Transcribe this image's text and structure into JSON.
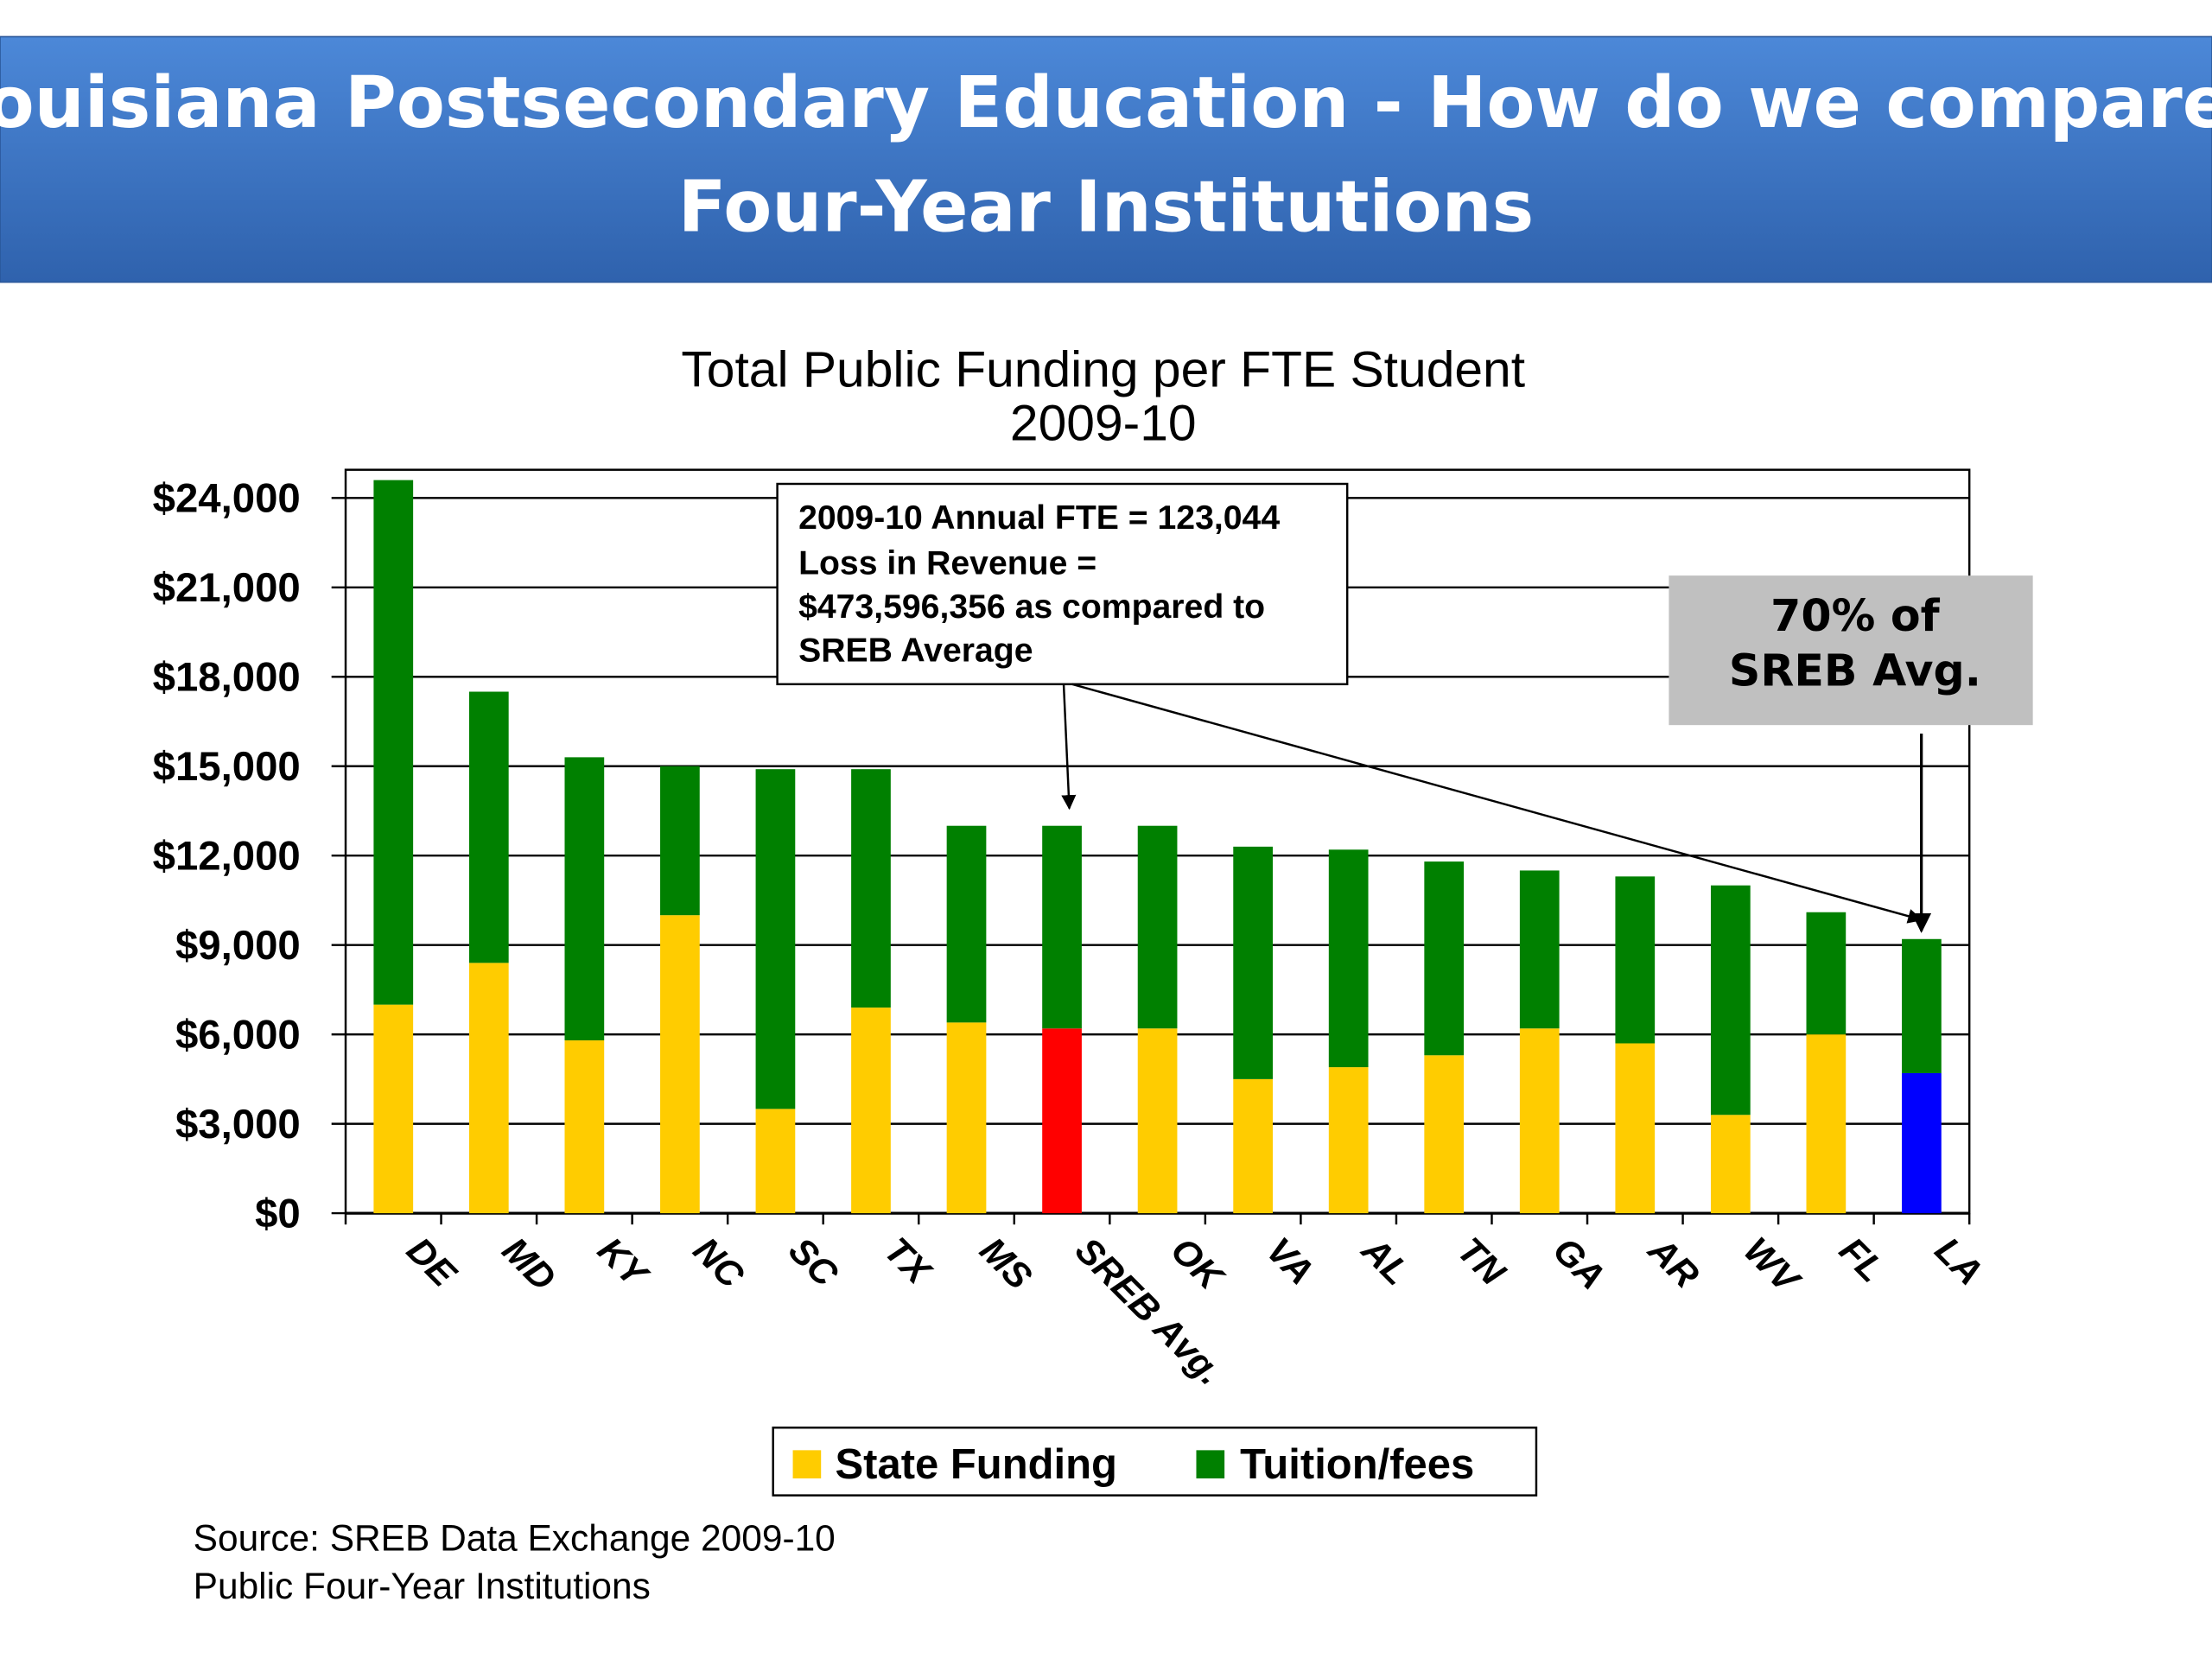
{
  "header": {
    "title_line1": "Louisiana Postsecondary Education  - How do we compare?",
    "title_line2": "Four-Year Institutions",
    "background": "#3b73c4"
  },
  "chart_data": {
    "type": "bar",
    "stacked": true,
    "title": "Total Public Funding per FTE Student",
    "subtitle": "2009-10",
    "xlabel": "",
    "ylabel": "",
    "ylim": [
      0,
      24000
    ],
    "yticks": [
      0,
      3000,
      6000,
      9000,
      12000,
      15000,
      18000,
      21000,
      24000
    ],
    "ytick_labels": [
      "$0",
      "$3,000",
      "$6,000",
      "$9,000",
      "$12,000",
      "$15,000",
      "$18,000",
      "$21,000",
      "$24,000"
    ],
    "grid": true,
    "categories": [
      "DE",
      "MD",
      "KY",
      "NC",
      "SC",
      "TX",
      "MS",
      "SREB Avg.",
      "OK",
      "VA",
      "AL",
      "TN",
      "GA",
      "AR",
      "WV",
      "FL",
      "LA"
    ],
    "series": [
      {
        "name": "State Funding",
        "color": "#FFCC00",
        "values": [
          7000,
          8400,
          5800,
          10000,
          3500,
          6900,
          6400,
          6200,
          6200,
          4500,
          4900,
          5300,
          6200,
          5700,
          3300,
          6000,
          4700
        ]
      },
      {
        "name": "Tuition/fees",
        "color": "#008000",
        "values": [
          17600,
          9100,
          9500,
          5000,
          11400,
          8000,
          6600,
          6800,
          6800,
          7800,
          7300,
          6500,
          5300,
          5600,
          7700,
          4100,
          4500
        ]
      }
    ],
    "highlight_colors": {
      "SREB Avg.": "#FF0000",
      "LA": "#0000FF"
    },
    "legend": [
      "State Funding",
      "Tuition/fees"
    ],
    "legend_position": "bottom",
    "annotations": {
      "fte_box": [
        "2009-10 Annual FTE = 123,044",
        "Loss in Revenue =",
        "$473,596,356 as compared to",
        "SREB Average"
      ],
      "pct_box": [
        "70% of",
        "SREB Avg."
      ]
    }
  },
  "source": [
    "Source: SREB Data Exchange 2009-10",
    "Public Four-Year Institutions"
  ]
}
